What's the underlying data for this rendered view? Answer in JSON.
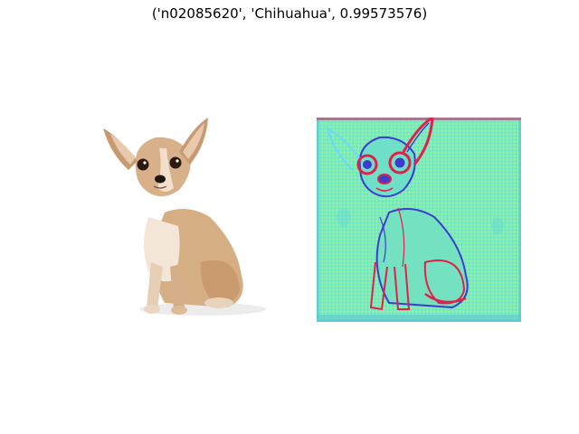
{
  "figure": {
    "title": "('n02085620', 'Chihuahua', 0.99573576)"
  },
  "panels": {
    "original": {
      "subject": "chihuahua-photo"
    },
    "saliency": {
      "subject": "chihuahua-saliency-map",
      "colormap": "rainbow"
    }
  },
  "colors": {
    "background": "#ffffff",
    "fur": "#d9b48e",
    "fur_light": "#f3e3d0",
    "saliency_base": "#7ff0a5",
    "saliency_edge_red": "#e0204a",
    "saliency_edge_blue": "#3e3ccf",
    "saliency_cyan": "#6fd6d8"
  }
}
